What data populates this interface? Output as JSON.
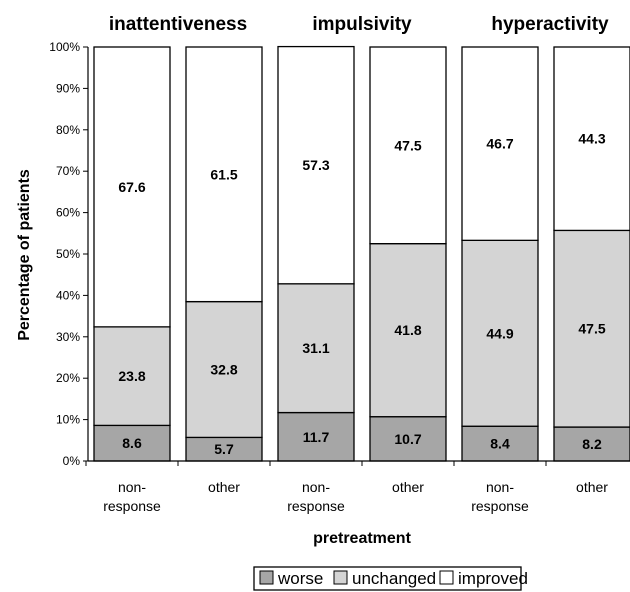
{
  "chart_data": {
    "type": "bar",
    "stacked": true,
    "group_titles": [
      "inattentiveness",
      "impulsivity",
      "hyperactivity"
    ],
    "categories": [
      [
        "non-",
        "response"
      ],
      [
        "other"
      ],
      [
        "non-",
        "response"
      ],
      [
        "other"
      ],
      [
        "non-",
        "response"
      ],
      [
        "other"
      ]
    ],
    "series": [
      {
        "name": "worse",
        "color": "#a6a6a6",
        "values": [
          8.6,
          5.7,
          11.7,
          10.7,
          8.4,
          8.2
        ]
      },
      {
        "name": "unchanged",
        "color": "#d4d4d4",
        "values": [
          23.8,
          32.8,
          31.1,
          41.8,
          44.9,
          47.5
        ]
      },
      {
        "name": "improved",
        "color": "#ffffff",
        "values": [
          67.6,
          61.5,
          57.3,
          47.5,
          46.7,
          44.3
        ]
      }
    ],
    "xlabel": "pretreatment",
    "ylabel": "Percentage of patients",
    "ylim": [
      0,
      100
    ],
    "yticks": [
      "0%",
      "10%",
      "20%",
      "30%",
      "40%",
      "50%",
      "60%",
      "70%",
      "80%",
      "90%",
      "100%"
    ],
    "grid": false,
    "legend_position": "bottom"
  }
}
